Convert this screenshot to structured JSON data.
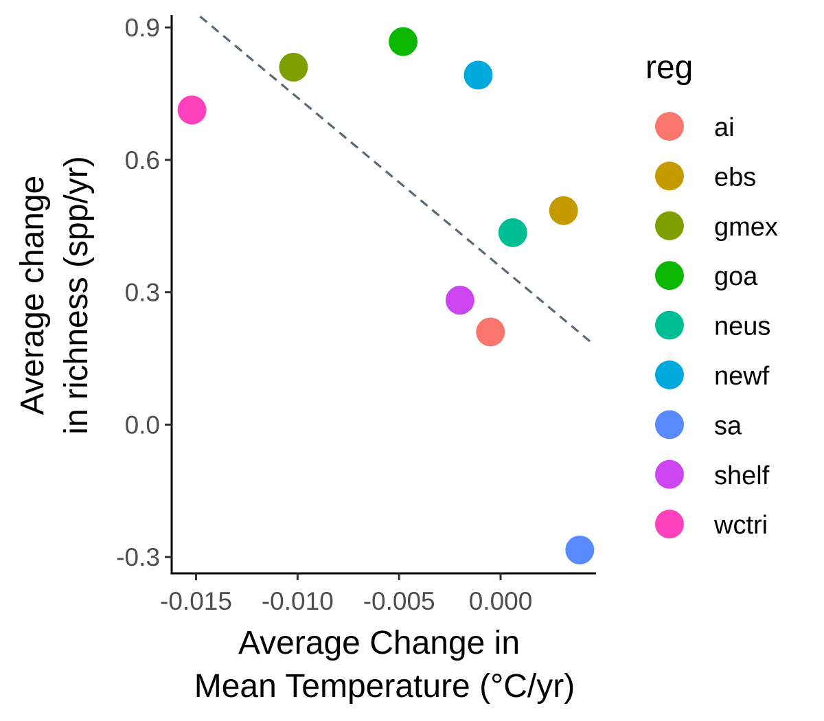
{
  "chart_data": {
    "type": "scatter",
    "xlabel": [
      "Average Change in",
      "Mean Temperature (°C/yr)"
    ],
    "ylabel": [
      "Average change",
      "in richness (spp/yr)"
    ],
    "xlim": [
      -0.0162,
      0.0047
    ],
    "ylim": [
      -0.337,
      0.928
    ],
    "x_ticks": [
      -0.015,
      -0.01,
      -0.005,
      0.0
    ],
    "x_tick_labels": [
      "-0.015",
      "-0.010",
      "-0.005",
      "0.000"
    ],
    "y_ticks": [
      -0.3,
      0.0,
      0.3,
      0.6,
      0.9
    ],
    "y_tick_labels": [
      "-0.3",
      "0.0",
      "0.3",
      "0.6",
      "0.9"
    ],
    "grid": false,
    "legend": {
      "title": "reg",
      "position": "right"
    },
    "series": [
      {
        "name": "ai",
        "color": "#F8766D",
        "x": -0.0005,
        "y": 0.21
      },
      {
        "name": "ebs",
        "color": "#C49A00",
        "x": 0.0031,
        "y": 0.485
      },
      {
        "name": "gmex",
        "color": "#7F9E00",
        "x": -0.0102,
        "y": 0.81
      },
      {
        "name": "goa",
        "color": "#0CB702",
        "x": -0.0048,
        "y": 0.868
      },
      {
        "name": "neus",
        "color": "#00BE94",
        "x": 0.0006,
        "y": 0.435
      },
      {
        "name": "newf",
        "color": "#00A9DD",
        "x": -0.0011,
        "y": 0.792
      },
      {
        "name": "sa",
        "color": "#598BFF",
        "x": 0.0039,
        "y": -0.284
      },
      {
        "name": "shelf",
        "color": "#CD45F1",
        "x": -0.002,
        "y": 0.282
      },
      {
        "name": "wctri",
        "color": "#FF40BD",
        "x": -0.0152,
        "y": 0.713
      }
    ],
    "trend_line": {
      "style": "dashed",
      "color": "#5b6876",
      "x": [
        -0.0148,
        0.0045
      ],
      "y": [
        0.925,
        0.185
      ]
    }
  }
}
